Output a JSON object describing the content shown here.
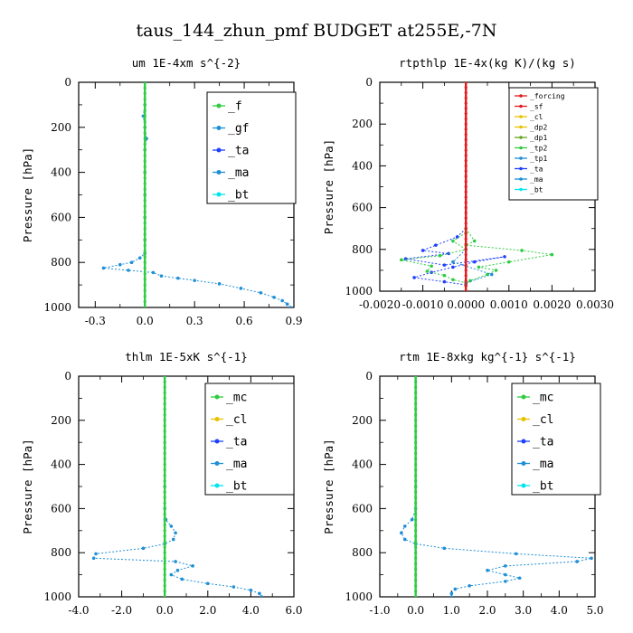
{
  "title": "taus_144_zhun_pmf  BUDGET at255E,-7N",
  "colors": {
    "red": "#e41a1c",
    "green": "#2ecc40",
    "blue": "#1e40ff",
    "teal": "#1f8fd6",
    "cyan": "#00e5ee",
    "yellow": "#e6c200",
    "olive": "#66a61e"
  },
  "chart_data": [
    {
      "type": "line",
      "title": "um   1E-4xm s^{-2}",
      "ylabel": "Pressure [hPa]",
      "xlim": [
        -0.4,
        0.9
      ],
      "ylim": [
        1000,
        0
      ],
      "xticks": [
        -0.3,
        0.0,
        0.3,
        0.6,
        0.9
      ],
      "xtick_labels": [
        "-0.3",
        "0.0",
        "0.3",
        "0.6",
        "0.9"
      ],
      "yticks": [
        0,
        200,
        400,
        600,
        800,
        1000
      ],
      "legend": [
        "_f",
        "_gf",
        "_ta",
        "_ma",
        "_bt"
      ],
      "series": [
        {
          "name": "_gf",
          "color": "teal",
          "points": [
            [
              0.0,
              0
            ],
            [
              0.0,
              100
            ],
            [
              -0.01,
              150
            ],
            [
              0.0,
              200
            ],
            [
              0.01,
              250
            ],
            [
              0.0,
              300
            ],
            [
              0.0,
              400
            ],
            [
              0.0,
              500
            ],
            [
              0.0,
              600
            ],
            [
              0.0,
              700
            ],
            [
              0.0,
              760
            ],
            [
              -0.03,
              780
            ],
            [
              -0.08,
              800
            ],
            [
              -0.15,
              810
            ],
            [
              -0.25,
              825
            ],
            [
              -0.1,
              835
            ],
            [
              0.05,
              845
            ],
            [
              0.1,
              860
            ],
            [
              0.2,
              870
            ],
            [
              0.3,
              880
            ],
            [
              0.45,
              895
            ],
            [
              0.58,
              915
            ],
            [
              0.7,
              935
            ],
            [
              0.78,
              955
            ],
            [
              0.83,
              970
            ],
            [
              0.86,
              985
            ],
            [
              0.88,
              1000
            ]
          ]
        },
        {
          "name": "_f",
          "color": "green",
          "points": [
            [
              0.0,
              0
            ],
            [
              0.0,
              1000
            ]
          ]
        }
      ]
    },
    {
      "type": "line",
      "title": "rtpthlp   1E-4x(kg K)/(kg s)",
      "ylabel": "Pressure [hPa]",
      "xlim": [
        -0.002,
        0.003
      ],
      "ylim": [
        1000,
        0
      ],
      "xticks": [
        -0.002,
        -0.001,
        0.0,
        0.001,
        0.002,
        0.003
      ],
      "xtick_labels": [
        "-0.0020",
        "-0.0010",
        "0.0000",
        "0.0010",
        "0.0020",
        "0.0030"
      ],
      "yticks": [
        0,
        200,
        400,
        600,
        800,
        1000
      ],
      "legend": [
        "_forcing",
        "_sf",
        "_cl",
        "_dp2",
        "_dp1",
        "_tp2",
        "_tp1",
        "_ta",
        "_ma",
        "_bt"
      ],
      "series": [
        {
          "name": "_ta",
          "color": "blue",
          "points": [
            [
              0.0,
              700
            ],
            [
              -0.0002,
              740
            ],
            [
              -0.0007,
              780
            ],
            [
              -0.001,
              805
            ],
            [
              -0.0004,
              820
            ],
            [
              -0.0014,
              845
            ],
            [
              -0.0005,
              875
            ],
            [
              0.0009,
              835
            ],
            [
              0.0002,
              860
            ],
            [
              -0.0003,
              885
            ],
            [
              -0.0008,
              910
            ],
            [
              -0.0012,
              935
            ],
            [
              -0.0005,
              955
            ],
            [
              0.0,
              970
            ]
          ]
        },
        {
          "name": "_tp1",
          "color": "green",
          "points": [
            [
              0.0,
              700
            ],
            [
              0.0002,
              760
            ],
            [
              0.0,
              780
            ],
            [
              0.0013,
              805
            ],
            [
              0.002,
              825
            ],
            [
              0.001,
              860
            ],
            [
              0.0003,
              885
            ],
            [
              0.0007,
              900
            ],
            [
              0.0005,
              920
            ],
            [
              0.0001,
              950
            ],
            [
              0.0,
              965
            ]
          ]
        },
        {
          "name": "_tp2",
          "color": "green",
          "points": [
            [
              0.0,
              720
            ],
            [
              -0.0003,
              760
            ],
            [
              0.0,
              800
            ],
            [
              -0.0006,
              830
            ],
            [
              -0.0015,
              850
            ],
            [
              -0.0008,
              880
            ],
            [
              -0.0009,
              905
            ],
            [
              -0.0005,
              925
            ],
            [
              -0.0003,
              945
            ],
            [
              0.0,
              960
            ]
          ]
        },
        {
          "name": "_cl",
          "color": "teal",
          "points": [
            [
              0.0,
              800
            ],
            [
              -0.0003,
              860
            ],
            [
              0.0006,
              920
            ],
            [
              0.0,
              960
            ]
          ]
        },
        {
          "name": "_forcing",
          "color": "red",
          "points": [
            [
              0.0,
              0
            ],
            [
              0.0,
              1000
            ]
          ]
        }
      ]
    },
    {
      "type": "line",
      "title": "thlm   1E-5xK s^{-1}",
      "ylabel": "Pressure [hPa]",
      "xlim": [
        -4,
        6
      ],
      "ylim": [
        1000,
        0
      ],
      "xticks": [
        -4,
        -2,
        0,
        2,
        4,
        6
      ],
      "xtick_labels": [
        "-4.0",
        "-2.0",
        "0.0",
        "2.0",
        "4.0",
        "6.0"
      ],
      "yticks": [
        0,
        200,
        400,
        600,
        800,
        1000
      ],
      "legend": [
        "_mc",
        "_cl",
        "_ta",
        "_ma",
        "_bt"
      ],
      "series": [
        {
          "name": "_cl",
          "color": "teal",
          "points": [
            [
              0.0,
              0
            ],
            [
              0.0,
              500
            ],
            [
              0.0,
              600
            ],
            [
              0.05,
              650
            ],
            [
              0.3,
              680
            ],
            [
              0.5,
              710
            ],
            [
              0.4,
              740
            ],
            [
              0.0,
              760
            ],
            [
              -1.0,
              780
            ],
            [
              -3.2,
              805
            ],
            [
              -3.3,
              825
            ],
            [
              0.5,
              840
            ],
            [
              1.3,
              860
            ],
            [
              0.6,
              880
            ],
            [
              0.3,
              900
            ],
            [
              0.8,
              920
            ],
            [
              2.0,
              940
            ],
            [
              3.2,
              955
            ],
            [
              4.0,
              970
            ],
            [
              4.4,
              985
            ],
            [
              4.5,
              1000
            ]
          ]
        },
        {
          "name": "_mc",
          "color": "green",
          "points": [
            [
              0.0,
              0
            ],
            [
              0.0,
              1000
            ]
          ]
        }
      ]
    },
    {
      "type": "line",
      "title": "rtm   1E-8xkg kg^{-1} s^{-1}",
      "ylabel": "Pressure [hPa]",
      "xlim": [
        -1,
        5
      ],
      "ylim": [
        1000,
        0
      ],
      "xticks": [
        -1,
        0,
        1,
        2,
        3,
        4,
        5
      ],
      "xtick_labels": [
        "-1.0",
        "0.0",
        "1.0",
        "2.0",
        "3.0",
        "4.0",
        "5.0"
      ],
      "yticks": [
        0,
        200,
        400,
        600,
        800,
        1000
      ],
      "legend": [
        "_mc",
        "_cl",
        "_ta",
        "_ma",
        "_bt"
      ],
      "series": [
        {
          "name": "_cl",
          "color": "teal",
          "points": [
            [
              0.0,
              0
            ],
            [
              0.0,
              500
            ],
            [
              0.0,
              600
            ],
            [
              -0.1,
              650
            ],
            [
              -0.3,
              680
            ],
            [
              -0.4,
              710
            ],
            [
              -0.3,
              740
            ],
            [
              0.0,
              760
            ],
            [
              0.8,
              780
            ],
            [
              2.8,
              805
            ],
            [
              4.9,
              825
            ],
            [
              4.5,
              840
            ],
            [
              2.5,
              860
            ],
            [
              2.0,
              880
            ],
            [
              2.5,
              900
            ],
            [
              2.9,
              915
            ],
            [
              2.5,
              930
            ],
            [
              1.5,
              950
            ],
            [
              1.1,
              965
            ],
            [
              1.0,
              985
            ],
            [
              1.0,
              1000
            ]
          ]
        },
        {
          "name": "_mc",
          "color": "green",
          "points": [
            [
              0.0,
              0
            ],
            [
              0.0,
              1000
            ]
          ]
        }
      ]
    }
  ]
}
